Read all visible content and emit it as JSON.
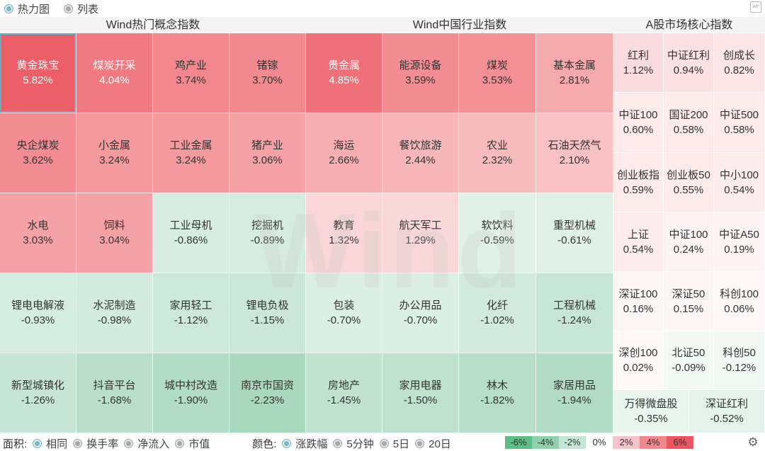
{
  "top_tabs": [
    {
      "label": "热力图",
      "selected": true
    },
    {
      "label": "列表",
      "selected": false
    }
  ],
  "logo_text": "WP",
  "watermark": "Wind",
  "panels": [
    {
      "title": "Wind热门概念指数",
      "tiles": [
        {
          "name": "黄金珠宝",
          "value": "5.82%",
          "color": "#ec5f68",
          "text": "#ffffff"
        },
        {
          "name": "煤炭开采",
          "value": "4.04%",
          "color": "#f07a82",
          "text": "#ffffff"
        },
        {
          "name": "鸡产业",
          "value": "3.74%",
          "color": "#f2888e",
          "text": "#333333"
        },
        {
          "name": "锗镓",
          "value": "3.70%",
          "color": "#f2898f",
          "text": "#333333"
        },
        {
          "name": "央企煤炭",
          "value": "3.62%",
          "color": "#f38c92",
          "text": "#333333"
        },
        {
          "name": "小金属",
          "value": "3.24%",
          "color": "#f49a9f",
          "text": "#333333"
        },
        {
          "name": "工业金属",
          "value": "3.24%",
          "color": "#f49a9f",
          "text": "#333333"
        },
        {
          "name": "猪产业",
          "value": "3.06%",
          "color": "#f5a1a6",
          "text": "#333333"
        },
        {
          "name": "水电",
          "value": "3.03%",
          "color": "#f5a2a7",
          "text": "#333333"
        },
        {
          "name": "饲料",
          "value": "3.04%",
          "color": "#f5a2a7",
          "text": "#333333"
        },
        {
          "name": "工业母机",
          "value": "-0.86%",
          "color": "#d7ede2",
          "text": "#333333"
        },
        {
          "name": "挖掘机",
          "value": "-0.89%",
          "color": "#d6ece1",
          "text": "#333333"
        },
        {
          "name": "锂电电解液",
          "value": "-0.93%",
          "color": "#d5ece0",
          "text": "#333333"
        },
        {
          "name": "水泥制造",
          "value": "-0.98%",
          "color": "#d3ebdf",
          "text": "#333333"
        },
        {
          "name": "家用轻工",
          "value": "-1.12%",
          "color": "#cce8da",
          "text": "#333333"
        },
        {
          "name": "锂电负极",
          "value": "-1.15%",
          "color": "#cbe7d9",
          "text": "#333333"
        },
        {
          "name": "新型城镇化",
          "value": "-1.26%",
          "color": "#c7e5d6",
          "text": "#333333"
        },
        {
          "name": "抖音平台",
          "value": "-1.68%",
          "color": "#b9dfcb",
          "text": "#333333"
        },
        {
          "name": "城中村改造",
          "value": "-1.90%",
          "color": "#b2dcc6",
          "text": "#333333"
        },
        {
          "name": "南京市国资",
          "value": "-2.23%",
          "color": "#a9d8bf",
          "text": "#333333"
        }
      ]
    },
    {
      "title": "Wind中国行业指数",
      "tiles": [
        {
          "name": "贵金属",
          "value": "4.85%",
          "color": "#ef7078",
          "text": "#ffffff"
        },
        {
          "name": "能源设备",
          "value": "3.59%",
          "color": "#f38d93",
          "text": "#333333"
        },
        {
          "name": "煤炭",
          "value": "3.53%",
          "color": "#f38f95",
          "text": "#333333"
        },
        {
          "name": "基本金属",
          "value": "2.81%",
          "color": "#f5a9ad",
          "text": "#333333"
        },
        {
          "name": "海运",
          "value": "2.66%",
          "color": "#f6aeb2",
          "text": "#333333"
        },
        {
          "name": "餐饮旅游",
          "value": "2.44%",
          "color": "#f7b6ba",
          "text": "#333333"
        },
        {
          "name": "农业",
          "value": "2.32%",
          "color": "#f7babd",
          "text": "#333333"
        },
        {
          "name": "石油天然气",
          "value": "2.10%",
          "color": "#f8c1c4",
          "text": "#333333"
        },
        {
          "name": "教育",
          "value": "1.32%",
          "color": "#fad6d8",
          "text": "#333333"
        },
        {
          "name": "航天军工",
          "value": "1.29%",
          "color": "#fad7d9",
          "text": "#333333"
        },
        {
          "name": "软饮料",
          "value": "-0.59%",
          "color": "#e0f1e8",
          "text": "#333333"
        },
        {
          "name": "重型机械",
          "value": "-0.61%",
          "color": "#dff1e7",
          "text": "#333333"
        },
        {
          "name": "包装",
          "value": "-0.70%",
          "color": "#dcefe5",
          "text": "#333333"
        },
        {
          "name": "办公用品",
          "value": "-0.70%",
          "color": "#dcefe5",
          "text": "#333333"
        },
        {
          "name": "化纤",
          "value": "-1.02%",
          "color": "#d1eadd",
          "text": "#333333"
        },
        {
          "name": "工程机械",
          "value": "-1.24%",
          "color": "#c8e6d7",
          "text": "#333333"
        },
        {
          "name": "房地产",
          "value": "-1.45%",
          "color": "#c1e2d1",
          "text": "#333333"
        },
        {
          "name": "家用电器",
          "value": "-1.50%",
          "color": "#bfe1cf",
          "text": "#333333"
        },
        {
          "name": "林木",
          "value": "-1.82%",
          "color": "#b5ddc8",
          "text": "#333333"
        },
        {
          "name": "家居用品",
          "value": "-1.94%",
          "color": "#b1dbc5",
          "text": "#333333"
        }
      ]
    },
    {
      "title": "A股市场核心指数",
      "tiles": [
        {
          "name": "红利",
          "value": "1.12%",
          "color": "#fbdcde",
          "text": "#333333"
        },
        {
          "name": "中证红利",
          "value": "0.94%",
          "color": "#fbe1e3",
          "text": "#333333"
        },
        {
          "name": "创成长",
          "value": "0.82%",
          "color": "#fce5e6",
          "text": "#333333"
        },
        {
          "name": "中证100",
          "value": "0.60%",
          "color": "#fdeaeb",
          "text": "#333333"
        },
        {
          "name": "国证200",
          "value": "0.58%",
          "color": "#fdebec",
          "text": "#333333"
        },
        {
          "name": "中证500",
          "value": "0.58%",
          "color": "#fdebec",
          "text": "#333333"
        },
        {
          "name": "创业板指",
          "value": "0.59%",
          "color": "#fdeaeb",
          "text": "#333333"
        },
        {
          "name": "创业板50",
          "value": "0.55%",
          "color": "#fdebec",
          "text": "#333333"
        },
        {
          "name": "中小100",
          "value": "0.54%",
          "color": "#fdeced",
          "text": "#333333"
        },
        {
          "name": "上证",
          "value": "0.54%",
          "color": "#fdeced",
          "text": "#333333"
        },
        {
          "name": "中证100",
          "value": "0.24%",
          "color": "#fef3f4",
          "text": "#333333"
        },
        {
          "name": "中证A50",
          "value": "0.19%",
          "color": "#fef4f5",
          "text": "#333333"
        },
        {
          "name": "深证100",
          "value": "0.16%",
          "color": "#fef5f6",
          "text": "#333333"
        },
        {
          "name": "深证50",
          "value": "0.15%",
          "color": "#fef5f6",
          "text": "#333333"
        },
        {
          "name": "科创100",
          "value": "0.06%",
          "color": "#fef7f8",
          "text": "#333333"
        },
        {
          "name": "深创100",
          "value": "0.02%",
          "color": "#fef8f8",
          "text": "#333333"
        },
        {
          "name": "北证50",
          "value": "-0.09%",
          "color": "#f3faf6",
          "text": "#333333"
        },
        {
          "name": "科创50",
          "value": "-0.12%",
          "color": "#f1f9f5",
          "text": "#333333"
        },
        {
          "name": "万得微盘股",
          "value": "-0.35%",
          "color": "#e9f5ef",
          "text": "#333333"
        },
        {
          "name": "深证红利",
          "value": "-0.52%",
          "color": "#e3f2ea",
          "text": "#333333"
        }
      ]
    }
  ],
  "bottom": {
    "area_label": "面积:",
    "area_options": [
      {
        "label": "相同",
        "selected": true
      },
      {
        "label": "换手率",
        "selected": false
      },
      {
        "label": "净流入",
        "selected": false
      },
      {
        "label": "市值",
        "selected": false
      }
    ],
    "color_label": "颜色:",
    "color_options": [
      {
        "label": "涨跌幅",
        "selected": true
      },
      {
        "label": "5分钟",
        "selected": false
      },
      {
        "label": "5日",
        "selected": false
      },
      {
        "label": "20日",
        "selected": false
      }
    ],
    "legend": [
      {
        "label": "-6%",
        "color": "#5cbd86"
      },
      {
        "label": "-4%",
        "color": "#8fd1ab"
      },
      {
        "label": "-2%",
        "color": "#c5e6d3"
      },
      {
        "label": "0%",
        "color": "#ffffff"
      },
      {
        "label": "2%",
        "color": "#f8c4c7"
      },
      {
        "label": "4%",
        "color": "#f1868d"
      },
      {
        "label": "6%",
        "color": "#ea5560"
      }
    ],
    "settings_icon": "gear-icon"
  }
}
